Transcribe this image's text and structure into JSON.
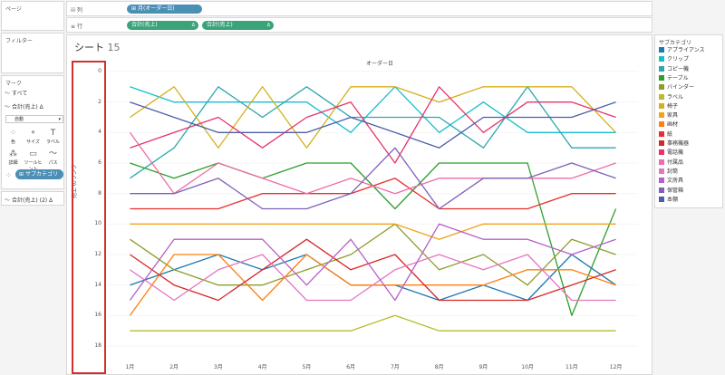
{
  "sidebar": {
    "pages_title": "ページ",
    "filters_title": "フィルター",
    "marks_title": "マーク",
    "marks_all": "すべて",
    "marks_measure": "合計(売上)",
    "mark_type": "自動",
    "buttons": [
      "色",
      "サイズ",
      "ラベル",
      "詳細",
      "ツールヒント",
      "パス"
    ],
    "color_pill": "サブカテゴリ",
    "marks_measure2": "合計(売上) (2)"
  },
  "shelves": {
    "columns_label": "列",
    "rows_label": "行",
    "columns_pill": "月(オーダー日)",
    "rows_pill1": "合計(売上)",
    "rows_pill2": "合計(売上)"
  },
  "sheet": {
    "title": "シート",
    "number": "15",
    "top_axis_title": "オーダー日",
    "left_axis_title": "売上 のランク"
  },
  "legend": {
    "title": "サブカテゴリ"
  },
  "colors": {
    "pill_blue": "#4b8fb5",
    "pill_green": "#3aa37a",
    "highlight_red": "#d0312d"
  },
  "chart_data": {
    "type": "line",
    "x": [
      "1月",
      "2月",
      "3月",
      "4月",
      "5月",
      "6月",
      "7月",
      "8月",
      "9月",
      "10月",
      "11月",
      "12月"
    ],
    "xlabel": "オーダー日",
    "ylabel": "売上 のランク",
    "ylim": [
      0,
      18
    ],
    "y_reversed": true,
    "yticks": [
      0,
      2,
      4,
      6,
      8,
      10,
      12,
      14,
      16,
      18
    ],
    "series": [
      {
        "name": "アプライアンス",
        "color": "#1f77b4",
        "values": [
          14,
          13,
          12,
          13,
          12,
          14,
          14,
          15,
          14,
          15,
          12,
          14
        ]
      },
      {
        "name": "クリップ",
        "color": "#17becf",
        "values": [
          1,
          2,
          2,
          2,
          2,
          4,
          1,
          4,
          2,
          4,
          4,
          4
        ]
      },
      {
        "name": "コピー機",
        "color": "#2ca7b0",
        "values": [
          7,
          5,
          1,
          3,
          1,
          3,
          3,
          3,
          5,
          1,
          5,
          5
        ]
      },
      {
        "name": "テーブル",
        "color": "#2ca02c",
        "values": [
          6,
          7,
          6,
          7,
          6,
          6,
          9,
          6,
          6,
          6,
          16,
          9
        ]
      },
      {
        "name": "バインダー",
        "color": "#8c9d2a",
        "values": [
          11,
          13,
          14,
          14,
          13,
          12,
          10,
          13,
          12,
          14,
          11,
          12
        ]
      },
      {
        "name": "ラベル",
        "color": "#b8bd2b",
        "values": [
          17,
          17,
          17,
          17,
          17,
          17,
          16,
          17,
          17,
          17,
          17,
          17
        ]
      },
      {
        "name": "椅子",
        "color": "#d4b01f",
        "values": [
          3,
          1,
          5,
          1,
          5,
          1,
          1,
          2,
          1,
          1,
          1,
          4
        ]
      },
      {
        "name": "家具",
        "color": "#f0a21b",
        "values": [
          10,
          10,
          10,
          10,
          10,
          10,
          10,
          11,
          10,
          10,
          10,
          10
        ]
      },
      {
        "name": "画材",
        "color": "#ff7f0e",
        "values": [
          16,
          12,
          12,
          15,
          12,
          14,
          14,
          14,
          14,
          13,
          13,
          14
        ]
      },
      {
        "name": "紙",
        "color": "#e82e2e",
        "values": [
          9,
          9,
          9,
          8,
          8,
          8,
          7,
          9,
          9,
          9,
          8,
          8
        ]
      },
      {
        "name": "事務機器",
        "color": "#d62728",
        "values": [
          12,
          14,
          15,
          13,
          11,
          13,
          12,
          15,
          15,
          15,
          14,
          13
        ]
      },
      {
        "name": "電話機",
        "color": "#e8336a",
        "values": [
          5,
          4,
          3,
          5,
          3,
          2,
          6,
          1,
          4,
          2,
          2,
          3
        ]
      },
      {
        "name": "付属品",
        "color": "#f06ba8",
        "values": [
          4,
          8,
          6,
          7,
          8,
          7,
          8,
          7,
          7,
          7,
          7,
          6
        ]
      },
      {
        "name": "封筒",
        "color": "#e377c2",
        "values": [
          13,
          15,
          13,
          12,
          15,
          15,
          13,
          12,
          13,
          12,
          15,
          15
        ]
      },
      {
        "name": "文房具",
        "color": "#b75fc7",
        "values": [
          15,
          11,
          11,
          11,
          14,
          11,
          15,
          10,
          11,
          11,
          12,
          11
        ]
      },
      {
        "name": "保管箱",
        "color": "#7f5fb8",
        "values": [
          8,
          8,
          7,
          9,
          9,
          8,
          5,
          9,
          7,
          7,
          6,
          7
        ]
      },
      {
        "name": "本棚",
        "color": "#4c5fa8",
        "values": [
          2,
          3,
          4,
          4,
          4,
          3,
          4,
          5,
          3,
          3,
          3,
          2
        ]
      }
    ]
  }
}
